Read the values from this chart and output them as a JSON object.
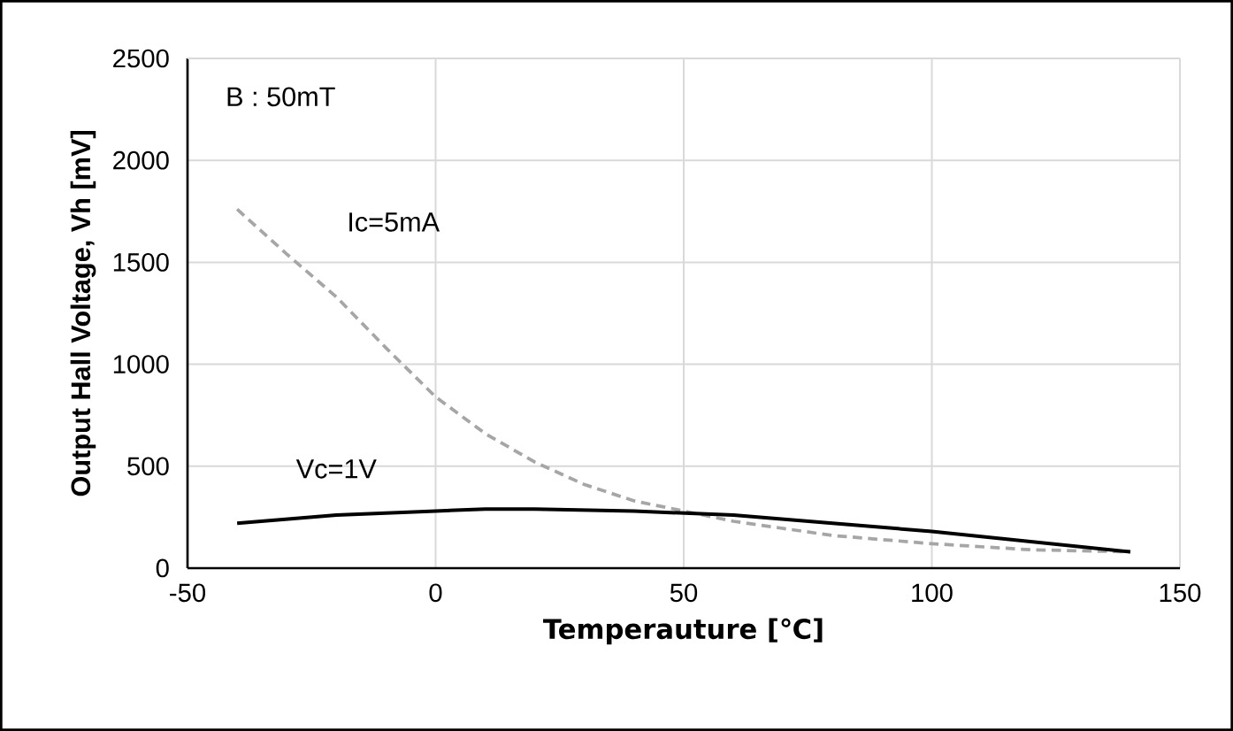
{
  "chart_data": {
    "type": "line",
    "xlabel": "Temperauture [℃]",
    "ylabel": "Output Hall Voltage, Vh [mV]",
    "annotations": [
      "B : 50mT"
    ],
    "xlim": [
      -50,
      150
    ],
    "xticks": [
      -50,
      0,
      50,
      100,
      150
    ],
    "ylim": [
      0,
      2500
    ],
    "yticks": [
      0,
      500,
      1000,
      1500,
      2000,
      2500
    ],
    "grid": true,
    "marker": "none",
    "series": [
      {
        "name": "Ic=5mA",
        "color": "#a6a6a6",
        "line_style": "dashed",
        "x": [
          -40,
          -30,
          -20,
          -10,
          0,
          10,
          20,
          30,
          40,
          60,
          80,
          100,
          120,
          140
        ],
        "values": [
          1760,
          1540,
          1330,
          1080,
          840,
          660,
          520,
          410,
          330,
          230,
          160,
          120,
          90,
          80
        ]
      },
      {
        "name": "Vc=1V",
        "color": "#000000",
        "line_style": "solid",
        "x": [
          -40,
          -20,
          0,
          10,
          20,
          40,
          60,
          80,
          100,
          120,
          140
        ],
        "values": [
          220,
          260,
          280,
          290,
          290,
          280,
          260,
          220,
          180,
          130,
          80
        ]
      }
    ]
  }
}
